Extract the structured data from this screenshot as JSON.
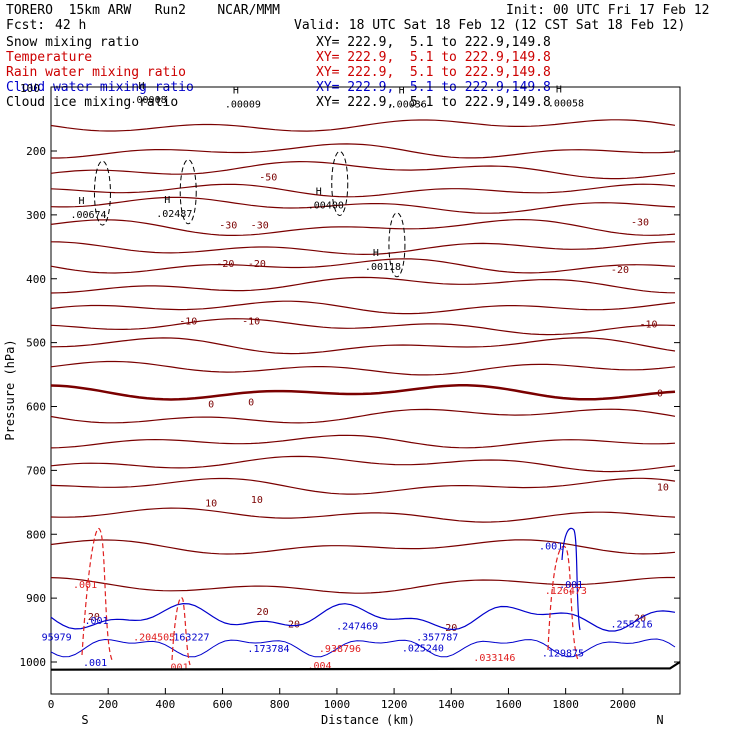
{
  "header": {
    "model": "TORERO  15km ARW   Run2    NCAR/MMM",
    "init": "Init: 00 UTC Fri 17 Feb 12",
    "fcst_label": "Fcst:",
    "fcst_value": "42 h",
    "valid": "Valid: 18 UTC Sat 18 Feb 12 (12 CST Sat 18 Feb 12)"
  },
  "fields": [
    {
      "name": "Snow mixing ratio",
      "color": "#000000",
      "xy": "XY= 222.9,  5.1 to 222.9,149.8"
    },
    {
      "name": "Temperature",
      "color": "#cc0000",
      "xy": "XY= 222.9,  5.1 to 222.9,149.8"
    },
    {
      "name": "Rain water mixing ratio",
      "color": "#cc0000",
      "xy": "XY= 222.9,  5.1 to 222.9,149.8"
    },
    {
      "name": "Cloud water mixing ratio",
      "color": "#0000cc",
      "xy": "XY= 222.9,  5.1 to 222.9,149.8"
    },
    {
      "name": "Cloud ice mixing ratio",
      "color": "#000000",
      "xy": "XY= 222.9,  5.1 to 222.9,149.8"
    }
  ],
  "colors": {
    "temperature": "#7a0000",
    "freezing": "#7a0000",
    "rain": "#e02020",
    "cloud_water": "#0000cc",
    "snow": "#000000",
    "terrain": "#000000"
  },
  "chart_data": {
    "type": "line",
    "title": "",
    "xlabel": "Distance (km)",
    "ylabel": "Pressure (hPa)",
    "xlim": [
      0,
      2200
    ],
    "ylim": [
      1050,
      100
    ],
    "x_ticks": [
      0,
      200,
      400,
      600,
      800,
      1000,
      1200,
      1400,
      1600,
      1800,
      2000
    ],
    "y_ticks": [
      200,
      300,
      400,
      500,
      600,
      700,
      800,
      900,
      1000
    ],
    "y_tick_labels_extra": [
      "100"
    ],
    "endpoints": {
      "left": "S",
      "right": "N"
    },
    "temperature_labels": [
      {
        "x": 760,
        "p": 240,
        "t": "-50"
      },
      {
        "x": 620,
        "p": 315,
        "t": "-30"
      },
      {
        "x": 730,
        "p": 315,
        "t": "-30"
      },
      {
        "x": 2060,
        "p": 310,
        "t": "-30"
      },
      {
        "x": 610,
        "p": 375,
        "t": "-20"
      },
      {
        "x": 720,
        "p": 375,
        "t": "-20"
      },
      {
        "x": 1990,
        "p": 385,
        "t": "-20"
      },
      {
        "x": 480,
        "p": 465,
        "t": "-10"
      },
      {
        "x": 700,
        "p": 465,
        "t": "-10"
      },
      {
        "x": 2090,
        "p": 470,
        "t": "-10"
      },
      {
        "x": 560,
        "p": 595,
        "t": "0"
      },
      {
        "x": 700,
        "p": 592,
        "t": "0"
      },
      {
        "x": 2130,
        "p": 578,
        "t": "0"
      },
      {
        "x": 560,
        "p": 750,
        "t": "10"
      },
      {
        "x": 720,
        "p": 745,
        "t": "10"
      },
      {
        "x": 2140,
        "p": 725,
        "t": "10"
      },
      {
        "x": 150,
        "p": 928,
        "t": "20"
      },
      {
        "x": 740,
        "p": 920,
        "t": "20"
      },
      {
        "x": 850,
        "p": 940,
        "t": "20"
      },
      {
        "x": 1400,
        "p": 945,
        "t": "20"
      },
      {
        "x": 2060,
        "p": 930,
        "t": "20"
      }
    ],
    "temperature_isotherms_hpa_left": [
      160,
      200,
      230,
      262,
      285,
      320,
      352,
      380,
      410,
      445,
      475,
      505,
      540,
      578,
      615,
      655,
      690,
      725,
      770,
      820,
      880
    ],
    "snow_maxima": [
      {
        "x": 320,
        "p": 125,
        "label": ".00008"
      },
      {
        "x": 650,
        "p": 132,
        "label": ".00009"
      },
      {
        "x": 1230,
        "p": 132,
        "label": ".00036"
      },
      {
        "x": 1780,
        "p": 130,
        "label": ".00058"
      },
      {
        "x": 110,
        "p": 305,
        "label": ".00674"
      },
      {
        "x": 410,
        "p": 303,
        "label": ".02487"
      },
      {
        "x": 940,
        "p": 290,
        "label": ".00400"
      },
      {
        "x": 1140,
        "p": 386,
        "label": ".00118"
      }
    ],
    "rain_maxima": [
      {
        "x": 140,
        "p": 878,
        "label": ".001"
      },
      {
        "x": 350,
        "p": 960,
        "label": ".204505"
      },
      {
        "x": 1000,
        "p": 978,
        "label": ".938796"
      },
      {
        "x": 1540,
        "p": 992,
        "label": ".033146"
      },
      {
        "x": 1790,
        "p": 887,
        "label": ".126473"
      },
      {
        "x": 460,
        "p": 1007,
        "label": ".001"
      },
      {
        "x": 960,
        "p": 1005,
        "label": ".004"
      }
    ],
    "cloud_water_maxima": [
      {
        "x": 30,
        "p": 960,
        "label": "95979"
      },
      {
        "x": 180,
        "p": 934,
        "label": ".001"
      },
      {
        "x": 470,
        "p": 960,
        "label": ".163227"
      },
      {
        "x": 750,
        "p": 978,
        "label": ".173784"
      },
      {
        "x": 1060,
        "p": 943,
        "label": ".247469"
      },
      {
        "x": 1340,
        "p": 960,
        "label": ".357787"
      },
      {
        "x": 1290,
        "p": 977,
        "label": ".025240"
      },
      {
        "x": 1780,
        "p": 985,
        "label": ".129875"
      },
      {
        "x": 1770,
        "p": 818,
        "label": ".001"
      },
      {
        "x": 1840,
        "p": 878,
        "label": ".001"
      },
      {
        "x": 2020,
        "p": 940,
        "label": ".255216"
      },
      {
        "x": 175,
        "p": 1000,
        "label": ".001"
      }
    ]
  }
}
